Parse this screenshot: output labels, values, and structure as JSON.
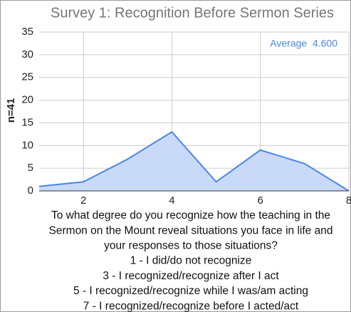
{
  "chart_data": {
    "type": "area",
    "title": "Survey 1: Recognition Before Sermon Series",
    "ylabel": "n=41",
    "annotation": "Average  4.600",
    "xlabel_lines": [
      "To what degree do you recognize how the teaching in the",
      "Sermon on the Mount reveal situations you face in life and",
      "your responses to those situations?",
      "1 - I did/do not recognize",
      "3 - I recognized/recognize after I act",
      "5 - I recognized/recognize while I was/am acting",
      "7 - I recognized/recognize before I acted/act"
    ],
    "x": [
      1,
      2,
      3,
      4,
      5,
      6,
      7,
      8
    ],
    "values": [
      1,
      2,
      7,
      13,
      2,
      9,
      6,
      0
    ],
    "color": "#4a86e8",
    "fill": "#c9daf8",
    "xlim": [
      1,
      8
    ],
    "xticks": [
      2,
      4,
      6,
      8
    ],
    "ylim": [
      0,
      35
    ],
    "yticks": [
      0,
      5,
      10,
      15,
      20,
      25,
      30,
      35
    ],
    "grid": true
  }
}
